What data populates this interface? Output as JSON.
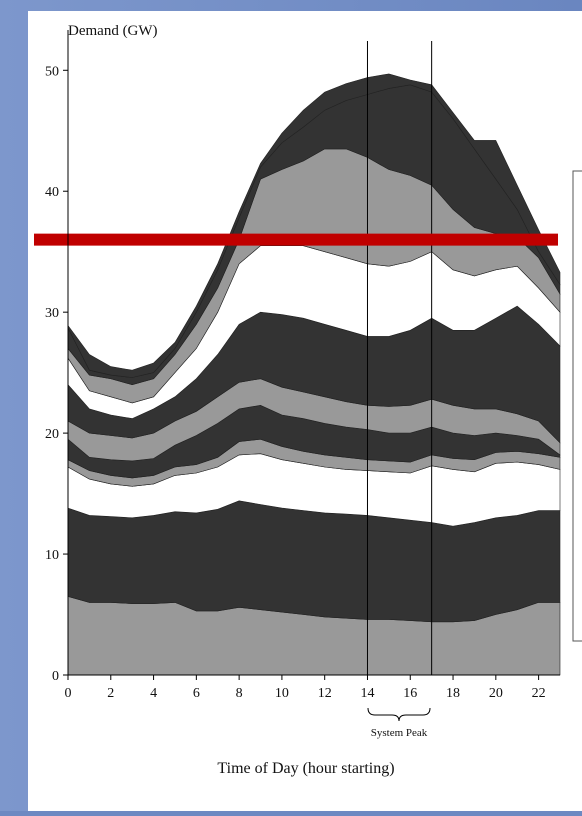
{
  "chart_data": {
    "type": "area",
    "stacked": true,
    "ylabel": "Demand (GW)",
    "xlabel": "Time of Day (hour starting)",
    "xlim": [
      0,
      23
    ],
    "ylim": [
      0,
      53
    ],
    "xticks": [
      0,
      2,
      4,
      6,
      8,
      10,
      12,
      14,
      16,
      18,
      20,
      22
    ],
    "yticks": [
      0,
      10,
      20,
      30,
      40,
      50
    ],
    "x": [
      0,
      1,
      2,
      3,
      4,
      5,
      6,
      7,
      8,
      9,
      10,
      11,
      12,
      13,
      14,
      15,
      16,
      17,
      18,
      19,
      20,
      21,
      22,
      23
    ],
    "boundaries": [
      [
        6.5,
        6.0,
        6.0,
        5.9,
        5.9,
        6.0,
        5.3,
        5.3,
        5.6,
        5.4,
        5.2,
        5.0,
        4.8,
        4.7,
        4.6,
        4.6,
        4.5,
        4.4,
        4.4,
        4.5,
        5.0,
        5.4,
        6.0,
        6.0
      ],
      [
        13.8,
        13.2,
        13.1,
        13.0,
        13.2,
        13.5,
        13.4,
        13.7,
        14.4,
        14.1,
        13.8,
        13.6,
        13.4,
        13.3,
        13.2,
        13.0,
        12.8,
        12.6,
        12.3,
        12.6,
        13.0,
        13.2,
        13.6,
        13.6
      ],
      [
        17.2,
        16.2,
        15.8,
        15.6,
        15.8,
        16.5,
        16.7,
        17.2,
        18.2,
        18.3,
        17.8,
        17.5,
        17.2,
        17.0,
        16.9,
        16.8,
        16.7,
        17.3,
        17.0,
        16.8,
        17.5,
        17.6,
        17.4,
        17.0
      ],
      [
        17.8,
        16.9,
        16.5,
        16.3,
        16.5,
        17.2,
        17.4,
        18.0,
        19.3,
        19.5,
        18.9,
        18.5,
        18.2,
        18.0,
        17.8,
        17.7,
        17.6,
        18.2,
        17.9,
        17.8,
        18.4,
        18.5,
        18.3,
        18.0
      ],
      [
        19.5,
        18.0,
        17.8,
        17.7,
        17.9,
        19.0,
        19.8,
        20.8,
        22.0,
        22.3,
        21.5,
        21.2,
        20.8,
        20.5,
        20.3,
        20.0,
        20.0,
        20.5,
        20.0,
        19.8,
        20.0,
        19.8,
        19.5,
        18.2
      ],
      [
        21.0,
        20.0,
        19.8,
        19.6,
        20.0,
        21.0,
        21.8,
        23.0,
        24.2,
        24.5,
        23.8,
        23.4,
        23.0,
        22.6,
        22.3,
        22.2,
        22.3,
        22.8,
        22.3,
        22.0,
        22.0,
        21.6,
        21.0,
        19.2
      ],
      [
        24.0,
        22.0,
        21.5,
        21.2,
        22.0,
        23.0,
        24.5,
        26.5,
        29.0,
        30.0,
        29.8,
        29.5,
        29.0,
        28.5,
        28.0,
        28.0,
        28.5,
        29.5,
        28.5,
        28.5,
        29.5,
        30.5,
        29.0,
        27.2
      ],
      [
        26.2,
        23.5,
        23.0,
        22.5,
        23.0,
        25.0,
        27.0,
        30.0,
        34.0,
        35.5,
        35.5,
        35.5,
        35.0,
        34.5,
        34.0,
        33.8,
        34.2,
        35.0,
        33.5,
        33.0,
        33.5,
        33.8,
        32.0,
        30.0
      ],
      [
        27.0,
        24.8,
        24.5,
        24.0,
        24.5,
        26.5,
        29.0,
        32.0,
        36.0,
        41.0,
        41.8,
        42.5,
        43.5,
        43.5,
        42.8,
        41.8,
        41.3,
        40.5,
        38.5,
        37.0,
        36.5,
        36.2,
        34.5,
        31.5
      ],
      [
        28.7,
        25.2,
        24.8,
        24.6,
        25.0,
        27.0,
        30.0,
        33.5,
        37.8,
        42.0,
        44.0,
        45.3,
        46.7,
        47.5,
        48.0,
        48.5,
        48.8,
        48.2,
        46.0,
        43.5,
        41.0,
        38.5,
        35.0,
        32.3
      ],
      [
        28.9,
        26.5,
        25.5,
        25.2,
        25.8,
        27.5,
        30.5,
        34.0,
        38.3,
        42.3,
        44.8,
        46.7,
        48.2,
        48.9,
        49.4,
        49.7,
        49.2,
        48.8,
        46.5,
        44.2,
        44.2,
        40.5,
        36.8,
        33.3
      ]
    ],
    "band_colors": [
      "#999999",
      "#333333",
      "#ffffff",
      "#999999",
      "#333333",
      "#999999",
      "#333333",
      "#ffffff",
      "#999999",
      "#333333"
    ],
    "vertical_lines": [
      14,
      17
    ],
    "threshold_line": {
      "value": 36,
      "color": "#c00000"
    },
    "annotation": "System Peak"
  }
}
